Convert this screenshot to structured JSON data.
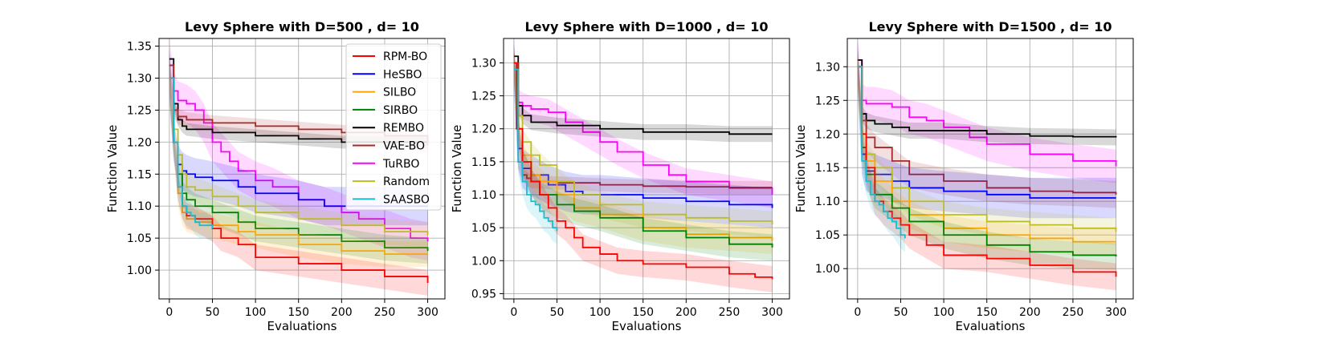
{
  "chart_data": [
    {
      "type": "line",
      "title": "Levy Sphere with D=500 , d= 10",
      "xlabel": "Evaluations",
      "ylabel": "Function Value",
      "xlim": [
        -12,
        320
      ],
      "ylim": [
        0.955,
        1.362
      ],
      "xticks": [
        0,
        50,
        100,
        150,
        200,
        250,
        300
      ],
      "xtick_labels": [
        "0",
        "50",
        "100",
        "150",
        "200",
        "250",
        "300"
      ],
      "yticks": [
        1.0,
        1.05,
        1.1,
        1.15,
        1.2,
        1.25,
        1.3,
        1.35
      ],
      "ytick_labels": [
        "1.00",
        "1.05",
        "1.10",
        "1.15",
        "1.20",
        "1.25",
        "1.30",
        "1.35"
      ],
      "grid": true,
      "legend": {
        "position": "top-right",
        "entries": [
          {
            "name": "RPM-BO",
            "color": "#ff0000"
          },
          {
            "name": "HeSBO",
            "color": "#0000ff"
          },
          {
            "name": "SILBO",
            "color": "#ffa500"
          },
          {
            "name": "SIRBO",
            "color": "#008000"
          },
          {
            "name": "REMBO",
            "color": "#000000"
          },
          {
            "name": "VAE-BO",
            "color": "#a52a2a"
          },
          {
            "name": "TuRBO",
            "color": "#ff00ff"
          },
          {
            "name": "Random",
            "color": "#bcbd22"
          },
          {
            "name": "SAASBO",
            "color": "#17becf"
          }
        ]
      },
      "series": [
        {
          "name": "TuRBO",
          "color": "#ff00ff",
          "band": 0.03,
          "x": [
            0,
            5,
            10,
            20,
            30,
            40,
            50,
            60,
            70,
            80,
            100,
            120,
            150,
            180,
            200,
            220,
            250,
            280,
            300
          ],
          "y": [
            1.32,
            1.28,
            1.265,
            1.26,
            1.25,
            1.23,
            1.2,
            1.185,
            1.17,
            1.155,
            1.14,
            1.13,
            1.11,
            1.1,
            1.09,
            1.08,
            1.065,
            1.05,
            1.045
          ]
        },
        {
          "name": "REMBO",
          "color": "#000000",
          "band": 0.01,
          "x": [
            0,
            5,
            10,
            15,
            20,
            50,
            100,
            150,
            200,
            250,
            300
          ],
          "y": [
            1.33,
            1.26,
            1.235,
            1.225,
            1.22,
            1.215,
            1.21,
            1.205,
            1.2,
            1.2,
            1.2
          ]
        },
        {
          "name": "VAE-BO",
          "color": "#a52a2a",
          "band": 0.012,
          "x": [
            0,
            5,
            10,
            20,
            50,
            100,
            150,
            200,
            250,
            300
          ],
          "y": [
            1.32,
            1.25,
            1.24,
            1.235,
            1.23,
            1.225,
            1.22,
            1.215,
            1.21,
            1.195
          ]
        },
        {
          "name": "HeSBO",
          "color": "#0000ff",
          "band": 0.03,
          "x": [
            0,
            5,
            10,
            15,
            20,
            30,
            50,
            80,
            100,
            150,
            180,
            200,
            250,
            300
          ],
          "y": [
            1.3,
            1.2,
            1.165,
            1.155,
            1.15,
            1.145,
            1.14,
            1.13,
            1.12,
            1.11,
            1.1,
            1.1,
            1.1,
            1.1
          ]
        },
        {
          "name": "Random",
          "color": "#bcbd22",
          "band": 0.02,
          "x": [
            0,
            5,
            10,
            15,
            20,
            30,
            50,
            80,
            100,
            150,
            200,
            250,
            300
          ],
          "y": [
            1.3,
            1.22,
            1.18,
            1.15,
            1.13,
            1.125,
            1.115,
            1.1,
            1.09,
            1.08,
            1.07,
            1.06,
            1.055
          ]
        },
        {
          "name": "SIRBO",
          "color": "#008000",
          "band": 0.02,
          "x": [
            0,
            5,
            10,
            15,
            20,
            30,
            50,
            80,
            100,
            150,
            200,
            250,
            300
          ],
          "y": [
            1.3,
            1.2,
            1.15,
            1.12,
            1.11,
            1.1,
            1.09,
            1.075,
            1.065,
            1.055,
            1.045,
            1.035,
            1.03
          ]
        },
        {
          "name": "SILBO",
          "color": "#ffa500",
          "band": 0.02,
          "x": [
            0,
            5,
            10,
            15,
            20,
            30,
            50,
            80,
            100,
            150,
            200,
            250,
            300
          ],
          "y": [
            1.3,
            1.2,
            1.12,
            1.09,
            1.08,
            1.075,
            1.07,
            1.06,
            1.055,
            1.04,
            1.03,
            1.025,
            1.025
          ]
        },
        {
          "name": "RPM-BO",
          "color": "#ff0000",
          "band": 0.02,
          "x": [
            0,
            5,
            10,
            15,
            20,
            30,
            50,
            60,
            80,
            100,
            150,
            200,
            250,
            300
          ],
          "y": [
            1.3,
            1.2,
            1.13,
            1.1,
            1.085,
            1.08,
            1.065,
            1.05,
            1.04,
            1.02,
            1.01,
            1.0,
            0.99,
            0.98
          ]
        },
        {
          "name": "SAASBO",
          "color": "#17becf",
          "band": 0.02,
          "x": [
            0,
            5,
            10,
            15,
            20,
            25,
            30,
            35,
            40,
            50
          ],
          "y": [
            1.3,
            1.2,
            1.13,
            1.1,
            1.09,
            1.085,
            1.075,
            1.07,
            1.07,
            1.065
          ]
        }
      ]
    },
    {
      "type": "line",
      "title": "Levy Sphere with D=1000 , d= 10",
      "xlabel": "Evaluations",
      "ylabel": "Function Value",
      "xlim": [
        -12,
        320
      ],
      "ylim": [
        0.942,
        1.337
      ],
      "xticks": [
        0,
        50,
        100,
        150,
        200,
        250,
        300
      ],
      "xtick_labels": [
        "0",
        "50",
        "100",
        "150",
        "200",
        "250",
        "300"
      ],
      "yticks": [
        0.95,
        1.0,
        1.05,
        1.1,
        1.15,
        1.2,
        1.25,
        1.3
      ],
      "ytick_labels": [
        "0.95",
        "1.00",
        "1.05",
        "1.10",
        "1.15",
        "1.20",
        "1.25",
        "1.30"
      ],
      "grid": true,
      "series": [
        {
          "name": "TuRBO",
          "color": "#ff00ff",
          "band": 0.02,
          "x": [
            0,
            5,
            10,
            20,
            40,
            60,
            80,
            100,
            120,
            150,
            180,
            200,
            250,
            300
          ],
          "y": [
            1.3,
            1.24,
            1.235,
            1.23,
            1.225,
            1.21,
            1.195,
            1.18,
            1.165,
            1.145,
            1.13,
            1.12,
            1.11,
            1.1
          ]
        },
        {
          "name": "REMBO",
          "color": "#000000",
          "band": 0.012,
          "x": [
            0,
            5,
            10,
            20,
            50,
            100,
            150,
            200,
            250,
            300
          ],
          "y": [
            1.31,
            1.235,
            1.22,
            1.21,
            1.205,
            1.2,
            1.195,
            1.195,
            1.192,
            1.192
          ]
        },
        {
          "name": "VAE-BO",
          "color": "#a52a2a",
          "band": 0.01,
          "x": [
            0,
            3,
            5,
            10,
            15,
            20,
            50,
            100,
            150,
            200,
            250,
            300
          ],
          "y": [
            1.3,
            1.2,
            1.15,
            1.13,
            1.125,
            1.12,
            1.118,
            1.115,
            1.113,
            1.112,
            1.111,
            1.111
          ]
        },
        {
          "name": "HeSBO",
          "color": "#0000ff",
          "band": 0.03,
          "x": [
            0,
            5,
            10,
            20,
            40,
            60,
            80,
            100,
            150,
            200,
            250,
            300
          ],
          "y": [
            1.3,
            1.17,
            1.14,
            1.13,
            1.115,
            1.105,
            1.1,
            1.1,
            1.095,
            1.09,
            1.085,
            1.08
          ]
        },
        {
          "name": "Random",
          "color": "#bcbd22",
          "band": 0.02,
          "x": [
            0,
            5,
            10,
            20,
            30,
            50,
            70,
            100,
            150,
            200,
            250,
            300
          ],
          "y": [
            1.3,
            1.22,
            1.18,
            1.16,
            1.145,
            1.12,
            1.1,
            1.085,
            1.07,
            1.065,
            1.06,
            1.055
          ]
        },
        {
          "name": "SILBO",
          "color": "#ffa500",
          "band": 0.02,
          "x": [
            0,
            5,
            10,
            20,
            30,
            50,
            70,
            100,
            150,
            200,
            250,
            300
          ],
          "y": [
            1.3,
            1.2,
            1.16,
            1.13,
            1.12,
            1.1,
            1.08,
            1.07,
            1.05,
            1.04,
            1.035,
            1.03
          ]
        },
        {
          "name": "SIRBO",
          "color": "#008000",
          "band": 0.02,
          "x": [
            0,
            5,
            10,
            20,
            30,
            50,
            70,
            100,
            150,
            200,
            250,
            300
          ],
          "y": [
            1.3,
            1.2,
            1.15,
            1.12,
            1.1,
            1.085,
            1.075,
            1.065,
            1.045,
            1.035,
            1.025,
            1.02
          ]
        },
        {
          "name": "RPM-BO",
          "color": "#ff0000",
          "band": 0.02,
          "x": [
            0,
            5,
            10,
            20,
            30,
            40,
            50,
            60,
            70,
            80,
            100,
            120,
            150,
            200,
            250,
            280,
            300
          ],
          "y": [
            1.3,
            1.2,
            1.15,
            1.12,
            1.1,
            1.08,
            1.06,
            1.05,
            1.035,
            1.02,
            1.01,
            1.0,
            0.995,
            0.99,
            0.98,
            0.975,
            0.972
          ]
        },
        {
          "name": "SAASBO",
          "color": "#17becf",
          "band": 0.02,
          "x": [
            0,
            5,
            10,
            15,
            20,
            25,
            30,
            35,
            40,
            45,
            50
          ],
          "y": [
            1.29,
            1.15,
            1.12,
            1.1,
            1.09,
            1.085,
            1.075,
            1.065,
            1.06,
            1.05,
            1.045
          ]
        }
      ]
    },
    {
      "type": "line",
      "title": "Levy Sphere with D=1500 , d= 10",
      "xlabel": "Evaluations",
      "ylabel": "Function Value",
      "xlim": [
        -12,
        320
      ],
      "ylim": [
        0.955,
        1.342
      ],
      "xticks": [
        0,
        50,
        100,
        150,
        200,
        250,
        300
      ],
      "xtick_labels": [
        "0",
        "50",
        "100",
        "150",
        "200",
        "250",
        "300"
      ],
      "yticks": [
        1.0,
        1.05,
        1.1,
        1.15,
        1.2,
        1.25,
        1.3
      ],
      "ytick_labels": [
        "1.00",
        "1.05",
        "1.10",
        "1.15",
        "1.20",
        "1.25",
        "1.30"
      ],
      "grid": true,
      "series": [
        {
          "name": "TuRBO",
          "color": "#ff00ff",
          "band": 0.025,
          "x": [
            0,
            5,
            10,
            20,
            40,
            60,
            80,
            100,
            130,
            150,
            200,
            250,
            300
          ],
          "y": [
            1.31,
            1.25,
            1.245,
            1.245,
            1.24,
            1.225,
            1.22,
            1.21,
            1.195,
            1.185,
            1.17,
            1.16,
            1.152
          ]
        },
        {
          "name": "REMBO",
          "color": "#000000",
          "band": 0.012,
          "x": [
            0,
            5,
            10,
            20,
            40,
            60,
            100,
            150,
            200,
            250,
            300
          ],
          "y": [
            1.31,
            1.23,
            1.22,
            1.215,
            1.21,
            1.205,
            1.205,
            1.2,
            1.197,
            1.196,
            1.195
          ]
        },
        {
          "name": "VAE-BO",
          "color": "#a52a2a",
          "band": 0.02,
          "x": [
            0,
            5,
            10,
            20,
            40,
            60,
            100,
            150,
            200,
            250,
            300
          ],
          "y": [
            1.3,
            1.22,
            1.195,
            1.18,
            1.16,
            1.14,
            1.13,
            1.12,
            1.115,
            1.113,
            1.11
          ]
        },
        {
          "name": "HeSBO",
          "color": "#0000ff",
          "band": 0.03,
          "x": [
            0,
            5,
            10,
            20,
            40,
            60,
            100,
            150,
            200,
            250,
            300
          ],
          "y": [
            1.3,
            1.17,
            1.145,
            1.14,
            1.13,
            1.12,
            1.115,
            1.11,
            1.105,
            1.105,
            1.105
          ]
        },
        {
          "name": "Random",
          "color": "#bcbd22",
          "band": 0.02,
          "x": [
            0,
            5,
            10,
            20,
            40,
            60,
            100,
            150,
            200,
            250,
            300
          ],
          "y": [
            1.3,
            1.2,
            1.17,
            1.15,
            1.12,
            1.1,
            1.08,
            1.07,
            1.065,
            1.06,
            1.055
          ]
        },
        {
          "name": "SILBO",
          "color": "#ffa500",
          "band": 0.02,
          "x": [
            0,
            5,
            10,
            20,
            40,
            60,
            100,
            150,
            200,
            250,
            300
          ],
          "y": [
            1.3,
            1.2,
            1.16,
            1.13,
            1.1,
            1.08,
            1.06,
            1.05,
            1.045,
            1.04,
            1.04
          ]
        },
        {
          "name": "SIRBO",
          "color": "#008000",
          "band": 0.02,
          "x": [
            0,
            5,
            10,
            20,
            40,
            60,
            100,
            150,
            200,
            250,
            300
          ],
          "y": [
            1.3,
            1.18,
            1.14,
            1.11,
            1.09,
            1.07,
            1.05,
            1.035,
            1.025,
            1.02,
            1.018
          ]
        },
        {
          "name": "RPM-BO",
          "color": "#ff0000",
          "band": 0.02,
          "x": [
            0,
            5,
            10,
            20,
            30,
            40,
            50,
            60,
            80,
            100,
            150,
            200,
            250,
            300
          ],
          "y": [
            1.3,
            1.2,
            1.15,
            1.1,
            1.085,
            1.075,
            1.065,
            1.05,
            1.035,
            1.02,
            1.015,
            1.005,
            0.995,
            0.988
          ]
        },
        {
          "name": "SAASBO",
          "color": "#17becf",
          "band": 0.02,
          "x": [
            0,
            5,
            10,
            15,
            20,
            25,
            30,
            35,
            40,
            45,
            50,
            55
          ],
          "y": [
            1.3,
            1.16,
            1.13,
            1.11,
            1.1,
            1.095,
            1.085,
            1.075,
            1.07,
            1.06,
            1.05,
            1.045
          ]
        }
      ]
    }
  ]
}
